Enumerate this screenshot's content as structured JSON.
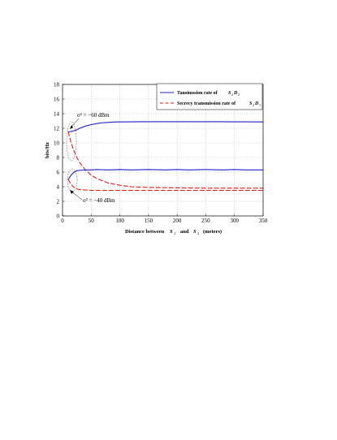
{
  "chart_data": {
    "type": "line",
    "xlabel": "Distance between",
    "xlabel_s1": "S",
    "xlabel_s1_sub": "1",
    "xlabel_and": "and",
    "xlabel_s2": "S",
    "xlabel_s2_sub": "2",
    "xlabel_units": "(meters)",
    "ylabel": "bits/Hz",
    "xlim": [
      0,
      350
    ],
    "ylim": [
      0,
      18
    ],
    "xticks": [
      0,
      50,
      100,
      150,
      200,
      250,
      300,
      350
    ],
    "yticks": [
      0,
      2,
      4,
      6,
      8,
      10,
      12,
      14,
      16,
      18
    ],
    "grid": true,
    "legend_position": "top-right",
    "legend": [
      {
        "label": "Tansimssion rate of",
        "math": "S",
        "sub": "2",
        "math2": "D",
        "sub2": "2",
        "color": "#1f1fcc",
        "style": "solid"
      },
      {
        "label": "Secrecy transmission rate of",
        "math": "S",
        "sub": "2",
        "math2": "D",
        "sub2": "1",
        "color": "#dd1f1f",
        "style": "dashed"
      }
    ],
    "annotations": [
      {
        "text": "σ² = −60 dBm",
        "points_to": {
          "x": 10,
          "y": 11.5
        }
      },
      {
        "text": "σ² = −40 dBm",
        "points_to": {
          "x": 10,
          "y": 5.0
        }
      }
    ],
    "series": [
      {
        "noise": "σ² = −60 dBm",
        "legend_index": 0,
        "color": "#1f1fcc",
        "dash": false,
        "x": [
          10,
          15,
          20,
          25,
          30,
          40,
          50,
          60,
          70,
          80,
          90,
          100,
          120,
          140,
          160,
          180,
          200,
          220,
          250,
          280,
          300,
          320,
          350
        ],
        "y": [
          11.5,
          11.55,
          11.65,
          11.8,
          12.0,
          12.3,
          12.5,
          12.65,
          12.75,
          12.8,
          12.85,
          12.87,
          12.88,
          12.9,
          12.9,
          12.9,
          12.9,
          12.9,
          12.9,
          12.9,
          12.88,
          12.88,
          12.87
        ]
      },
      {
        "noise": "σ² = −60 dBm",
        "legend_index": 1,
        "color": "#dd1f1f",
        "dash": true,
        "x": [
          10,
          15,
          20,
          25,
          30,
          40,
          50,
          60,
          70,
          80,
          100,
          120,
          150,
          200,
          250,
          300,
          350
        ],
        "y": [
          11.5,
          10.0,
          8.9,
          8.0,
          7.3,
          6.3,
          5.6,
          5.1,
          4.8,
          4.5,
          4.2,
          4.0,
          3.9,
          3.85,
          3.8,
          3.8,
          3.8
        ]
      },
      {
        "noise": "σ² = −40 dBm",
        "legend_index": 0,
        "color": "#1f1fcc",
        "dash": false,
        "x": [
          10,
          15,
          20,
          25,
          30,
          40,
          50,
          60,
          80,
          100,
          120,
          150,
          180,
          200,
          220,
          250,
          280,
          300,
          320,
          350
        ],
        "y": [
          5.0,
          5.6,
          6.0,
          6.2,
          6.25,
          6.3,
          6.3,
          6.35,
          6.3,
          6.35,
          6.3,
          6.35,
          6.3,
          6.35,
          6.3,
          6.35,
          6.3,
          6.35,
          6.3,
          6.3
        ]
      },
      {
        "noise": "σ² = −40 dBm",
        "legend_index": 1,
        "color": "#dd1f1f",
        "dash": true,
        "x": [
          10,
          15,
          20,
          25,
          30,
          40,
          50,
          60,
          80,
          100,
          150,
          200,
          250,
          300,
          350
        ],
        "y": [
          5.0,
          4.3,
          3.9,
          3.7,
          3.6,
          3.55,
          3.5,
          3.5,
          3.5,
          3.5,
          3.5,
          3.5,
          3.5,
          3.5,
          3.5
        ]
      }
    ]
  }
}
